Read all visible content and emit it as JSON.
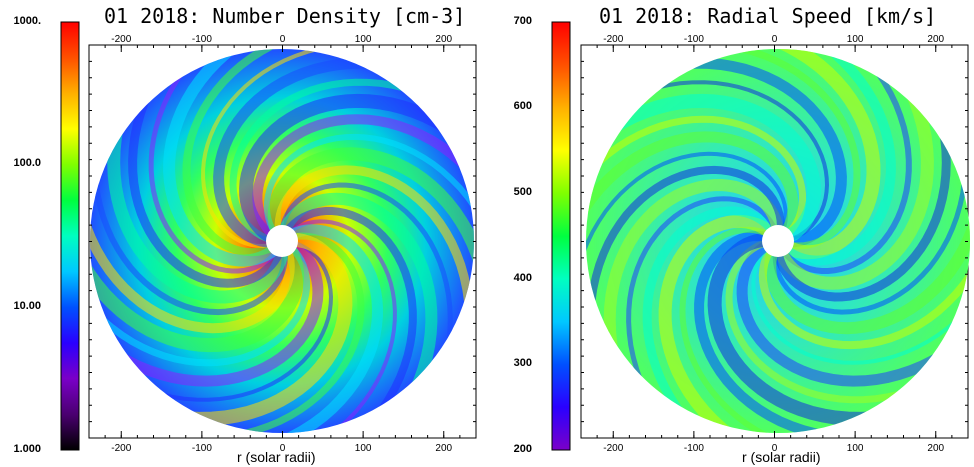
{
  "colors": {
    "colormap": [
      "#000000",
      "#4a0070",
      "#7a00c8",
      "#2a00ff",
      "#0050ff",
      "#00c8ff",
      "#00ffc0",
      "#00ff40",
      "#80ff00",
      "#ffff00",
      "#ffb000",
      "#ff5000",
      "#ff0000"
    ]
  },
  "chart_data": [
    {
      "type": "heatmap",
      "title": "01 2018: Number Density [cm-3]",
      "xlabel": "r (solar radii)",
      "xlim": [
        -240,
        240
      ],
      "x_ticks": [
        "-200",
        "-100",
        "0",
        "100",
        "200"
      ],
      "x_tick_values": [
        -200,
        -100,
        0,
        100,
        200
      ],
      "colorbar": {
        "scale": "log",
        "range": [
          1,
          1000
        ],
        "tick_labels": [
          "1.000",
          "10.00",
          "100.0",
          "1000."
        ],
        "tick_values": [
          1,
          10,
          100,
          1000
        ]
      },
      "grid": false
    },
    {
      "type": "heatmap",
      "title": "01 2018: Radial Speed [km/s]",
      "xlabel": "r (solar radii)",
      "xlim": [
        -240,
        240
      ],
      "x_ticks": [
        "-200",
        "-100",
        "0",
        "100",
        "200"
      ],
      "x_tick_values": [
        -200,
        -100,
        0,
        100,
        200
      ],
      "colorbar": {
        "scale": "linear",
        "range": [
          200,
          700
        ],
        "tick_labels": [
          "200",
          "300",
          "400",
          "500",
          "600",
          "700"
        ],
        "tick_values": [
          200,
          300,
          400,
          500,
          600,
          700
        ]
      },
      "grid": false
    }
  ]
}
